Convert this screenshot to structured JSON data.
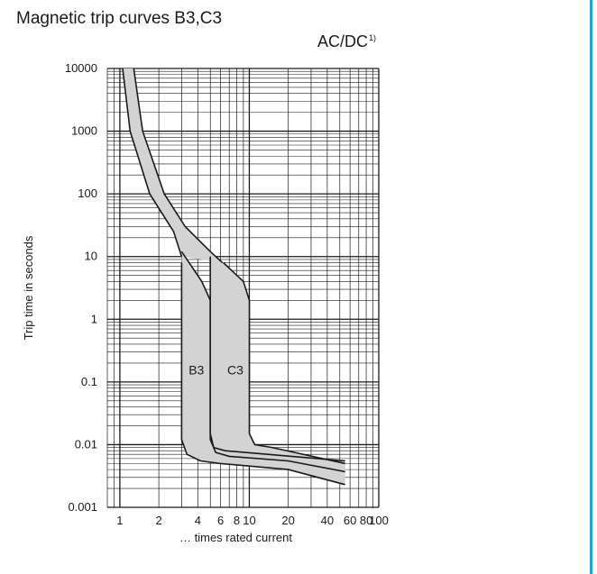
{
  "title": "Magnetic trip curves B3,C3",
  "subtitle": "AC/DC",
  "subtitle_footnote": "1)",
  "accent_color": "#2aa0d2",
  "band_color": "#d3d3d3",
  "chart_data": {
    "type": "area",
    "xlabel": "… times rated current",
    "ylabel": "Trip time in seconds",
    "xscale": "log",
    "yscale": "log",
    "xlim": [
      0.8,
      100
    ],
    "ylim": [
      0.001,
      10000
    ],
    "grid": true,
    "x_ticks": [
      {
        "value": 1,
        "label": "1"
      },
      {
        "value": 2,
        "label": "2"
      },
      {
        "value": 4,
        "label": "4"
      },
      {
        "value": 6,
        "label": "6"
      },
      {
        "value": 8,
        "label": "8"
      },
      {
        "value": 10,
        "label": "10"
      },
      {
        "value": 20,
        "label": "20"
      },
      {
        "value": 40,
        "label": "40"
      },
      {
        "value": 60,
        "label": "60"
      },
      {
        "value": 80,
        "label": "80"
      },
      {
        "value": 100,
        "label": "100"
      }
    ],
    "y_ticks": [
      {
        "value": 0.001,
        "label": "0.001"
      },
      {
        "value": 0.01,
        "label": "0.01"
      },
      {
        "value": 0.1,
        "label": "0.1"
      },
      {
        "value": 1,
        "label": "1"
      },
      {
        "value": 10,
        "label": "10"
      },
      {
        "value": 100,
        "label": "100"
      },
      {
        "value": 1000,
        "label": "1000"
      },
      {
        "value": 10000,
        "label": "10000"
      }
    ],
    "thermal_band": {
      "upper": [
        [
          1.28,
          10000
        ],
        [
          1.5,
          1000
        ],
        [
          2.2,
          100
        ],
        [
          3.2,
          30
        ],
        [
          5,
          12
        ],
        [
          6.2,
          8
        ]
      ],
      "lower": [
        [
          1.05,
          10000
        ],
        [
          1.2,
          1000
        ],
        [
          1.7,
          100
        ],
        [
          2.6,
          25
        ],
        [
          3,
          10
        ]
      ]
    },
    "series": [
      {
        "name": "B3",
        "label_at": [
          3.9,
          0.15
        ],
        "lower": [
          [
            3,
            8
          ],
          [
            3,
            0.012
          ],
          [
            3.3,
            0.007
          ],
          [
            4.2,
            0.0055
          ],
          [
            6,
            0.005
          ],
          [
            20,
            0.004
          ],
          [
            55,
            0.0023
          ]
        ],
        "upper": [
          [
            3,
            12
          ],
          [
            4.3,
            4
          ],
          [
            5,
            2
          ],
          [
            5,
            0.015
          ],
          [
            5.3,
            0.009
          ],
          [
            6.5,
            0.008
          ],
          [
            55,
            0.0055
          ]
        ]
      },
      {
        "name": "C3",
        "label_at": [
          7.8,
          0.15
        ],
        "lower": [
          [
            5,
            10
          ],
          [
            5,
            0.012
          ],
          [
            5.5,
            0.0075
          ],
          [
            7,
            0.0065
          ],
          [
            20,
            0.0055
          ],
          [
            55,
            0.0037
          ]
        ],
        "upper": [
          [
            6.3,
            8
          ],
          [
            9,
            4
          ],
          [
            10,
            2
          ],
          [
            10,
            0.015
          ],
          [
            11,
            0.01
          ],
          [
            15,
            0.009
          ],
          [
            55,
            0.005
          ]
        ]
      }
    ]
  }
}
